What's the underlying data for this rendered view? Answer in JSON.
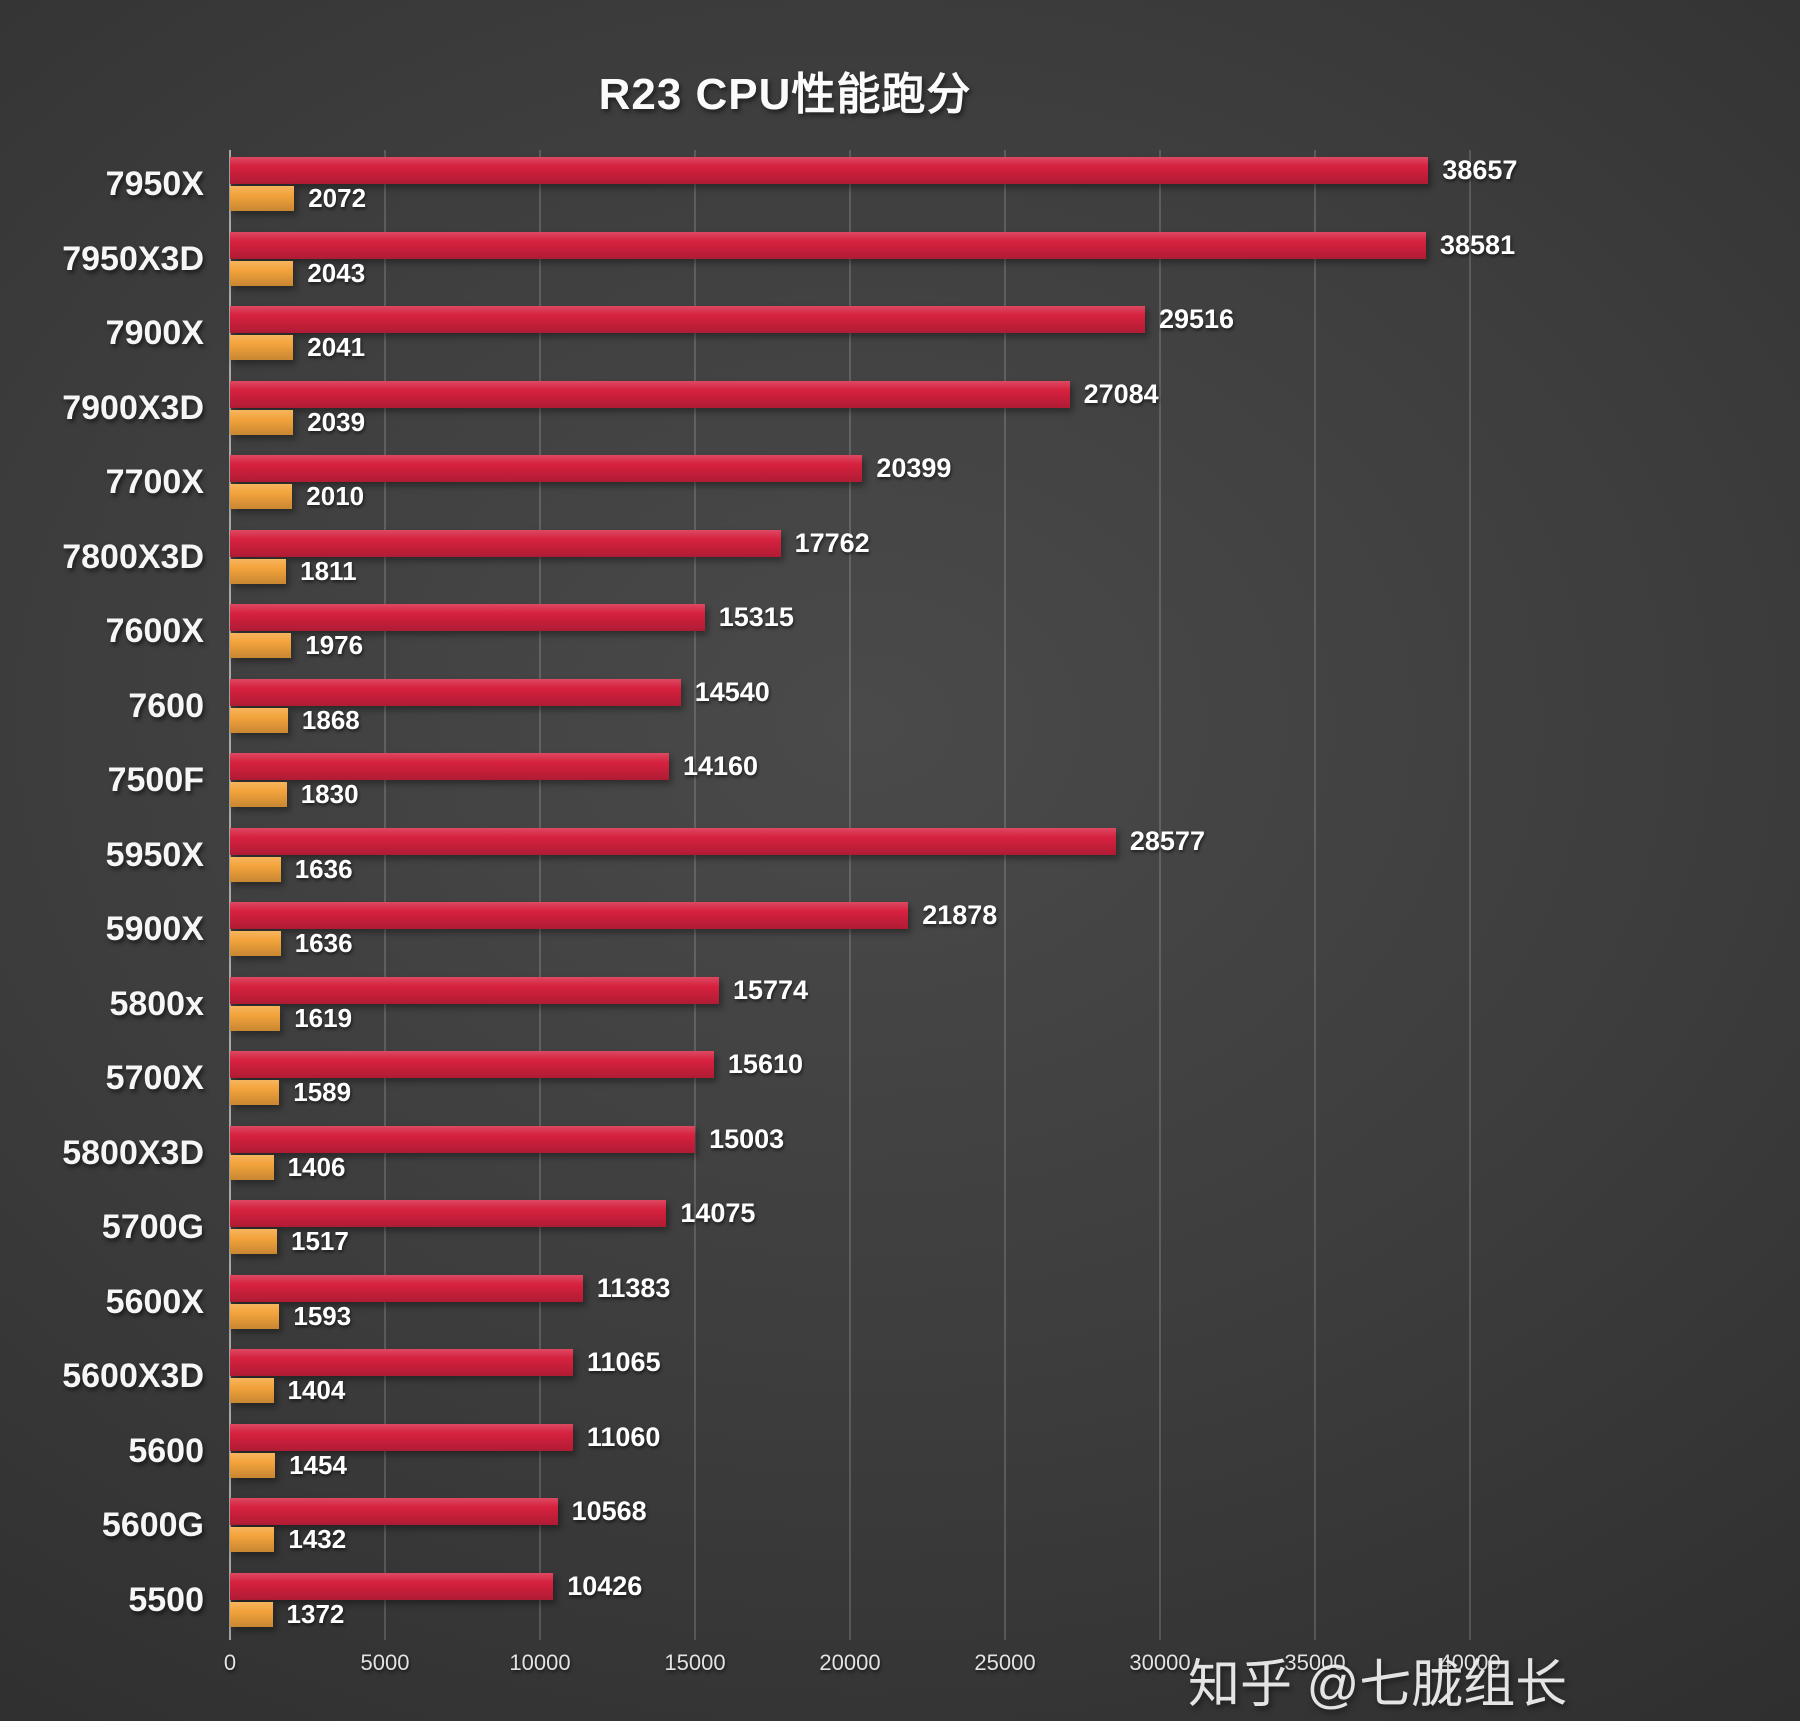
{
  "chart_data": {
    "type": "bar",
    "orientation": "horizontal",
    "title": "R23 CPU性能跑分",
    "xlabel": "",
    "ylabel": "",
    "xlim": [
      0,
      40000
    ],
    "x_ticks": [
      0,
      5000,
      10000,
      15000,
      20000,
      25000,
      30000,
      35000,
      40000
    ],
    "grid": true,
    "legend": "none",
    "categories": [
      "7950X",
      "7950X3D",
      "7900X",
      "7900X3D",
      "7700X",
      "7800X3D",
      "7600X",
      "7600",
      "7500F",
      "5950X",
      "5900X",
      "5800x",
      "5700X",
      "5800X3D",
      "5700G",
      "5600X",
      "5600X3D",
      "5600",
      "5600G",
      "5500"
    ],
    "series": [
      {
        "name": "red",
        "color": "#d6213f",
        "values": [
          38657,
          38581,
          29516,
          27084,
          20399,
          17762,
          15315,
          14540,
          14160,
          28577,
          21878,
          15774,
          15610,
          15003,
          14075,
          11383,
          11065,
          11060,
          10568,
          10426
        ]
      },
      {
        "name": "orange",
        "color": "#f4a43c",
        "values": [
          2072,
          2043,
          2041,
          2039,
          2010,
          1811,
          1976,
          1868,
          1830,
          1636,
          1636,
          1619,
          1589,
          1406,
          1517,
          1593,
          1404,
          1454,
          1432,
          1372
        ]
      }
    ]
  },
  "watermark": "知乎 @七胧组长"
}
